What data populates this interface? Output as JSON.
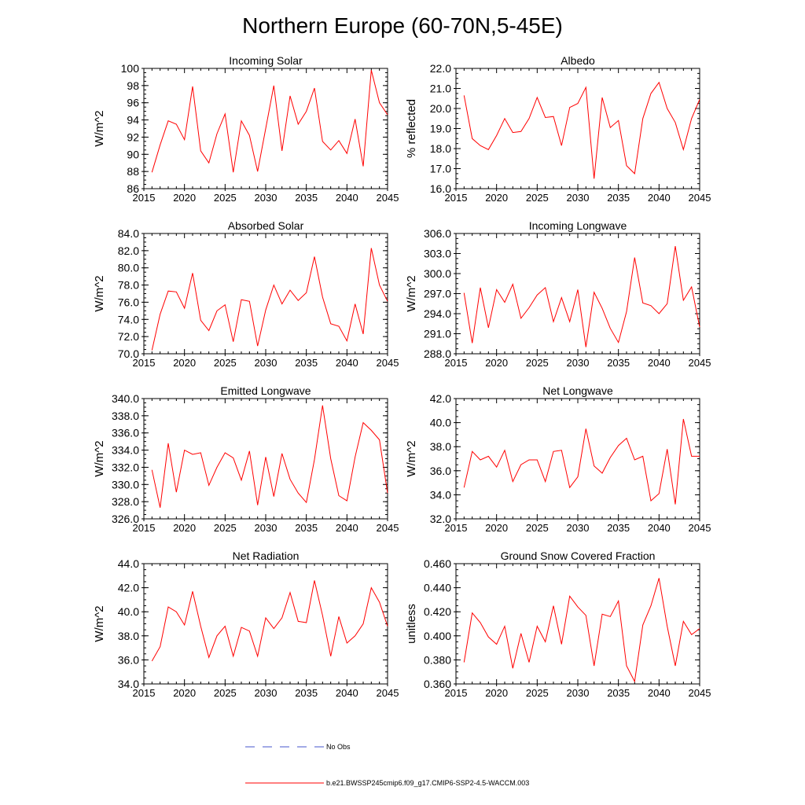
{
  "title": "Northern Europe (60-70N,5-45E)",
  "series_color": "#ff0000",
  "obs_color": "#4455cc",
  "legend": {
    "obs_label": "No Obs",
    "model_label": "b.e21.BWSSP245cmip6.f09_g17.CMIP6-SSP2-4.5-WACCM.003"
  },
  "chart_data": [
    {
      "type": "line",
      "title": "Incoming Solar",
      "xlabel": "",
      "ylabel": "W/m^2",
      "xlim": [
        2015,
        2045
      ],
      "xticks": [
        2015,
        2020,
        2025,
        2030,
        2035,
        2040,
        2045
      ],
      "ylim": [
        86,
        100
      ],
      "yticks": [
        86,
        88,
        90,
        92,
        94,
        96,
        98,
        100
      ],
      "ytick_decimals": 0,
      "x": [
        2016,
        2017,
        2018,
        2019,
        2020,
        2021,
        2022,
        2023,
        2024,
        2025,
        2026,
        2027,
        2028,
        2029,
        2030,
        2031,
        2032,
        2033,
        2034,
        2035,
        2036,
        2037,
        2038,
        2039,
        2040,
        2041,
        2042,
        2043,
        2044,
        2045
      ],
      "values": [
        87.9,
        91.1,
        93.9,
        93.5,
        91.7,
        97.9,
        90.4,
        89.0,
        92.4,
        94.7,
        87.9,
        93.9,
        92.2,
        88.0,
        93.0,
        98.0,
        90.4,
        96.8,
        93.5,
        95.0,
        97.7,
        91.5,
        90.5,
        91.6,
        90.1,
        94.1,
        88.6,
        99.8,
        96.0,
        94.6
      ]
    },
    {
      "type": "line",
      "title": "Albedo",
      "xlabel": "",
      "ylabel": "% reflected",
      "xlim": [
        2015,
        2045
      ],
      "xticks": [
        2015,
        2020,
        2025,
        2030,
        2035,
        2040,
        2045
      ],
      "ylim": [
        16.0,
        22.0
      ],
      "yticks": [
        16,
        17,
        18,
        19,
        20,
        21,
        22
      ],
      "ytick_decimals": 1,
      "x": [
        2016,
        2017,
        2018,
        2019,
        2020,
        2021,
        2022,
        2023,
        2024,
        2025,
        2026,
        2027,
        2028,
        2029,
        2030,
        2031,
        2032,
        2033,
        2034,
        2035,
        2036,
        2037,
        2038,
        2039,
        2040,
        2041,
        2042,
        2043,
        2044,
        2045
      ],
      "values": [
        20.65,
        18.5,
        18.15,
        17.95,
        18.65,
        19.5,
        18.8,
        18.85,
        19.5,
        20.55,
        19.55,
        19.6,
        18.15,
        20.05,
        20.25,
        21.05,
        16.5,
        20.55,
        19.05,
        19.4,
        17.15,
        16.75,
        19.5,
        20.75,
        21.3,
        20.0,
        19.3,
        17.95,
        19.5,
        20.45
      ]
    },
    {
      "type": "line",
      "title": "Absorbed Solar",
      "xlabel": "",
      "ylabel": "W/m^2",
      "xlim": [
        2015,
        2045
      ],
      "xticks": [
        2015,
        2020,
        2025,
        2030,
        2035,
        2040,
        2045
      ],
      "ylim": [
        70.0,
        84.0
      ],
      "yticks": [
        70,
        72,
        74,
        76,
        78,
        80,
        82,
        84
      ],
      "ytick_decimals": 1,
      "x": [
        2016,
        2017,
        2018,
        2019,
        2020,
        2021,
        2022,
        2023,
        2024,
        2025,
        2026,
        2027,
        2028,
        2029,
        2030,
        2031,
        2032,
        2033,
        2034,
        2035,
        2036,
        2037,
        2038,
        2039,
        2040,
        2041,
        2042,
        2043,
        2044,
        2045
      ],
      "values": [
        70.4,
        74.6,
        77.3,
        77.2,
        75.3,
        79.4,
        73.9,
        72.7,
        75.0,
        75.7,
        71.4,
        76.3,
        76.1,
        70.9,
        75.1,
        78.0,
        75.8,
        77.4,
        76.2,
        77.1,
        81.3,
        76.6,
        73.5,
        73.2,
        71.5,
        75.8,
        72.3,
        82.3,
        78.0,
        76.1
      ]
    },
    {
      "type": "line",
      "title": "Incoming Longwave",
      "xlabel": "",
      "ylabel": "W/m^2",
      "xlim": [
        2015,
        2045
      ],
      "xticks": [
        2015,
        2020,
        2025,
        2030,
        2035,
        2040,
        2045
      ],
      "ylim": [
        288.0,
        306.0
      ],
      "yticks": [
        288,
        291,
        294,
        297,
        300,
        303,
        306
      ],
      "ytick_decimals": 1,
      "x": [
        2016,
        2017,
        2018,
        2019,
        2020,
        2021,
        2022,
        2023,
        2024,
        2025,
        2026,
        2027,
        2028,
        2029,
        2030,
        2031,
        2032,
        2033,
        2034,
        2035,
        2036,
        2037,
        2038,
        2039,
        2040,
        2041,
        2042,
        2043,
        2044,
        2045
      ],
      "values": [
        297.1,
        289.6,
        297.9,
        291.9,
        297.6,
        295.7,
        298.4,
        293.3,
        294.9,
        296.8,
        297.9,
        292.8,
        296.4,
        292.8,
        297.6,
        289.0,
        297.2,
        294.8,
        291.8,
        289.7,
        294.3,
        302.4,
        295.6,
        295.2,
        294.0,
        295.5,
        304.1,
        296.0,
        298.0,
        292.0
      ]
    },
    {
      "type": "line",
      "title": "Emitted Longwave",
      "xlabel": "",
      "ylabel": "W/m^2",
      "xlim": [
        2015,
        2045
      ],
      "xticks": [
        2015,
        2020,
        2025,
        2030,
        2035,
        2040,
        2045
      ],
      "ylim": [
        326.0,
        340.0
      ],
      "yticks": [
        326,
        328,
        330,
        332,
        334,
        336,
        338,
        340
      ],
      "ytick_decimals": 1,
      "x": [
        2016,
        2017,
        2018,
        2019,
        2020,
        2021,
        2022,
        2023,
        2024,
        2025,
        2026,
        2027,
        2028,
        2029,
        2030,
        2031,
        2032,
        2033,
        2034,
        2035,
        2036,
        2037,
        2038,
        2039,
        2040,
        2041,
        2042,
        2043,
        2044,
        2045
      ],
      "values": [
        331.7,
        327.3,
        334.8,
        329.1,
        334.0,
        333.5,
        333.7,
        329.9,
        332.0,
        333.7,
        333.1,
        330.5,
        333.9,
        327.6,
        333.2,
        328.6,
        333.6,
        330.6,
        329.0,
        327.9,
        332.9,
        339.2,
        333.0,
        328.7,
        328.1,
        333.2,
        337.2,
        336.3,
        335.2,
        329.0
      ]
    },
    {
      "type": "line",
      "title": "Net Longwave",
      "xlabel": "",
      "ylabel": "W/m^2",
      "xlim": [
        2015,
        2045
      ],
      "xticks": [
        2015,
        2020,
        2025,
        2030,
        2035,
        2040,
        2045
      ],
      "ylim": [
        32.0,
        42.0
      ],
      "yticks": [
        32,
        34,
        36,
        38,
        40,
        42
      ],
      "ytick_decimals": 1,
      "x": [
        2016,
        2017,
        2018,
        2019,
        2020,
        2021,
        2022,
        2023,
        2024,
        2025,
        2026,
        2027,
        2028,
        2029,
        2030,
        2031,
        2032,
        2033,
        2034,
        2035,
        2036,
        2037,
        2038,
        2039,
        2040,
        2041,
        2042,
        2043,
        2044,
        2045
      ],
      "values": [
        34.6,
        37.6,
        36.9,
        37.2,
        36.3,
        37.7,
        35.1,
        36.5,
        36.9,
        36.9,
        35.1,
        37.6,
        37.7,
        34.6,
        35.5,
        39.5,
        36.4,
        35.8,
        37.1,
        38.1,
        38.7,
        36.9,
        37.2,
        33.5,
        34.1,
        37.8,
        33.2,
        40.3,
        37.2,
        37.2
      ]
    },
    {
      "type": "line",
      "title": "Net Radiation",
      "xlabel": "",
      "ylabel": "W/m^2",
      "xlim": [
        2015,
        2045
      ],
      "xticks": [
        2015,
        2020,
        2025,
        2030,
        2035,
        2040,
        2045
      ],
      "ylim": [
        34.0,
        44.0
      ],
      "yticks": [
        34,
        36,
        38,
        40,
        42,
        44
      ],
      "ytick_decimals": 1,
      "x": [
        2016,
        2017,
        2018,
        2019,
        2020,
        2021,
        2022,
        2023,
        2024,
        2025,
        2026,
        2027,
        2028,
        2029,
        2030,
        2031,
        2032,
        2033,
        2034,
        2035,
        2036,
        2037,
        2038,
        2039,
        2040,
        2041,
        2042,
        2043,
        2044,
        2045
      ],
      "values": [
        35.9,
        37.1,
        40.4,
        40.0,
        38.9,
        41.7,
        38.8,
        36.2,
        38.0,
        38.8,
        36.3,
        38.7,
        38.4,
        36.3,
        39.5,
        38.6,
        39.5,
        41.6,
        39.2,
        39.1,
        42.6,
        39.7,
        36.3,
        39.6,
        37.4,
        38.0,
        39.0,
        42.0,
        40.8,
        38.8
      ]
    },
    {
      "type": "line",
      "title": "Ground Snow Covered Fraction",
      "xlabel": "",
      "ylabel": "unitless",
      "xlim": [
        2015,
        2045
      ],
      "xticks": [
        2015,
        2020,
        2025,
        2030,
        2035,
        2040,
        2045
      ],
      "ylim": [
        0.36,
        0.46
      ],
      "yticks": [
        0.36,
        0.38,
        0.4,
        0.42,
        0.44,
        0.46
      ],
      "ytick_decimals": 3,
      "x": [
        2016,
        2017,
        2018,
        2019,
        2020,
        2021,
        2022,
        2023,
        2024,
        2025,
        2026,
        2027,
        2028,
        2029,
        2030,
        2031,
        2032,
        2033,
        2034,
        2035,
        2036,
        2037,
        2038,
        2039,
        2040,
        2041,
        2042,
        2043,
        2044,
        2045
      ],
      "values": [
        0.378,
        0.419,
        0.411,
        0.399,
        0.393,
        0.408,
        0.373,
        0.402,
        0.378,
        0.408,
        0.395,
        0.425,
        0.393,
        0.433,
        0.424,
        0.417,
        0.375,
        0.418,
        0.416,
        0.429,
        0.375,
        0.362,
        0.409,
        0.425,
        0.448,
        0.408,
        0.375,
        0.412,
        0.401,
        0.406
      ]
    }
  ]
}
